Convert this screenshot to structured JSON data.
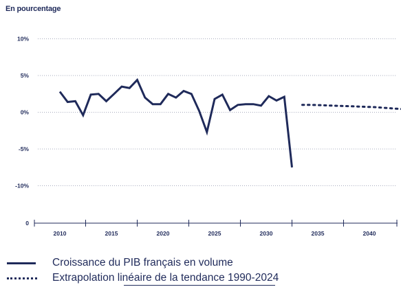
{
  "chart_data": {
    "type": "line",
    "ylabel": "En pourcentage",
    "ylim": [
      -15,
      12
    ],
    "yticks": [
      {
        "value": 10,
        "label": "10%"
      },
      {
        "value": 5,
        "label": "5%"
      },
      {
        "value": 0,
        "label": "0%"
      },
      {
        "value": -5,
        "label": "-5%"
      },
      {
        "value": -10,
        "label": "-10%"
      }
    ],
    "baseline_label": "0",
    "xlim": [
      2007,
      2045
    ],
    "xticks": [
      2010,
      2015,
      2020,
      2025,
      2030,
      2035,
      2040
    ],
    "series": [
      {
        "name": "Croissance du PIB français en volume",
        "style": "solid",
        "color": "#1f2a5a",
        "x": [
          2010,
          2010.75,
          2011.5,
          2012.25,
          2013,
          2013.75,
          2014.5,
          2015.25,
          2016,
          2016.75,
          2017.5,
          2018.25,
          2019,
          2019.75,
          2020.5,
          2021.25,
          2022,
          2022.75,
          2023.5,
          2024.25,
          2025,
          2025.75,
          2026.5,
          2027.25,
          2028,
          2028.75,
          2029.5,
          2030.25,
          2031,
          2031.75,
          2032.5
        ],
        "y": [
          2.8,
          1.4,
          1.5,
          -0.4,
          2.4,
          2.5,
          1.5,
          2.5,
          3.5,
          3.3,
          4.4,
          2.0,
          1.1,
          1.1,
          2.5,
          2.0,
          2.9,
          2.5,
          0.2,
          -2.7,
          1.8,
          2.4,
          0.3,
          1.0,
          1.1,
          1.1,
          0.9,
          2.2,
          1.6,
          2.1,
          -7.5
        ]
      },
      {
        "name": "Extrapolation linéaire de la tendance 1990-2024",
        "style": "dotted",
        "color": "#1f2a5a",
        "x": [
          2033.5,
          2034.5,
          2035.5,
          2036.5,
          2037.5,
          2038.5,
          2039.5,
          2040.5,
          2041.5,
          2042.5,
          2043.5,
          2044.5
        ],
        "y": [
          1.0,
          1.0,
          0.95,
          0.9,
          0.85,
          0.8,
          0.75,
          0.7,
          0.6,
          0.5,
          0.4,
          0.3
        ]
      }
    ],
    "legend_position": "bottom-left"
  },
  "legend": [
    {
      "label": "Croissance du PIB français en volume"
    },
    {
      "label": "Extrapolation linéaire de la tendance 1990-2024"
    }
  ]
}
